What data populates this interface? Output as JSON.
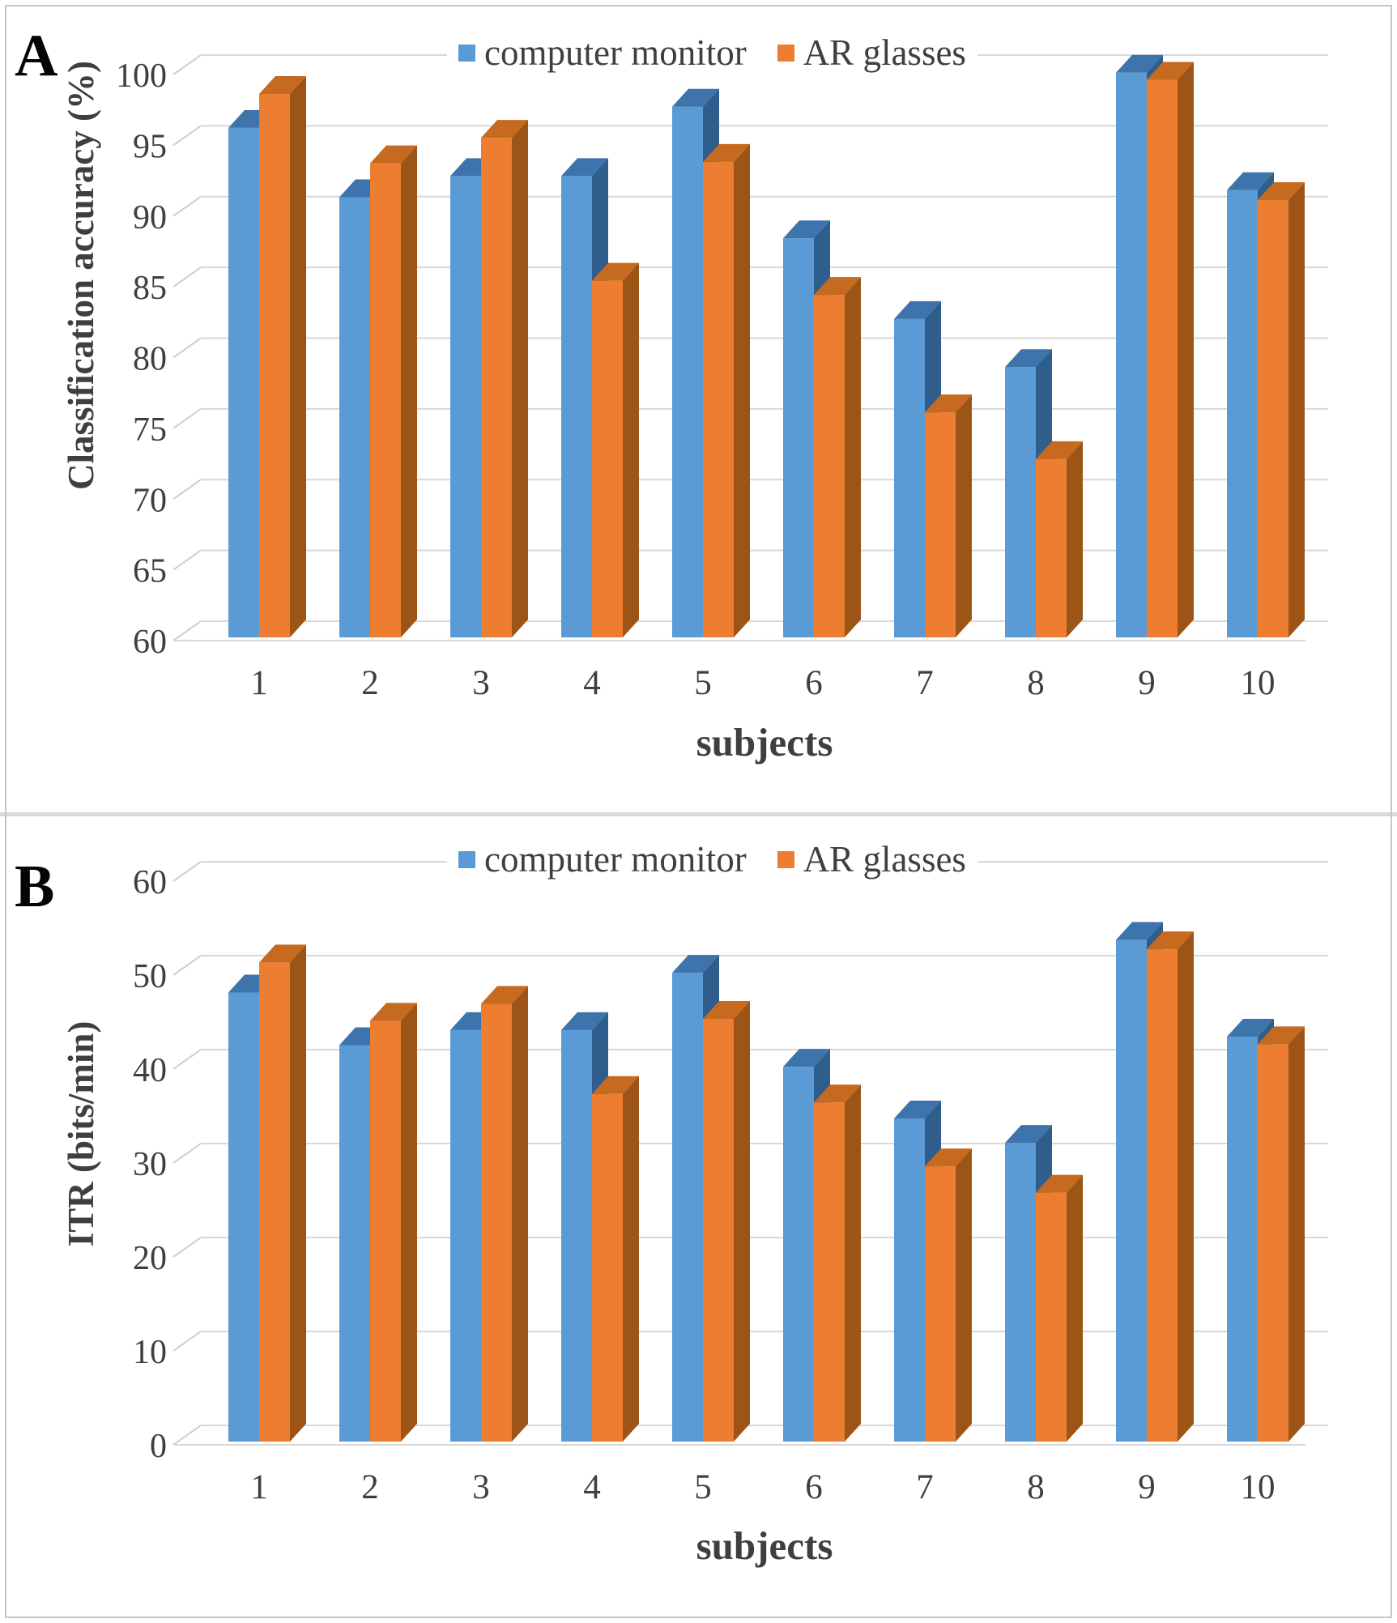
{
  "chart_data": [
    {
      "type": "bar",
      "panel_letter": "A",
      "ylabel": "Classification accuracy (%)",
      "xlabel": "subjects",
      "categories": [
        "1",
        "2",
        "3",
        "4",
        "5",
        "6",
        "7",
        "8",
        "9",
        "10"
      ],
      "series": [
        {
          "name": "computer monitor",
          "color": "#5b9bd5",
          "values": [
            96.0,
            91.1,
            92.6,
            92.6,
            97.5,
            88.2,
            82.5,
            79.1,
            99.9,
            91.6
          ]
        },
        {
          "name": "AR glasses",
          "color": "#ed7d31",
          "values": [
            98.4,
            93.5,
            95.3,
            85.2,
            93.6,
            84.2,
            75.9,
            72.6,
            99.4,
            90.9
          ]
        }
      ],
      "ylim": [
        60,
        100
      ],
      "y_ticks": [
        100,
        95,
        90,
        85,
        80,
        75,
        70,
        65,
        60
      ],
      "grid": true,
      "legend_position": "top",
      "style": "3d-column"
    },
    {
      "type": "bar",
      "panel_letter": "B",
      "ylabel": "ITR (bits/min)",
      "xlabel": "subjects",
      "categories": [
        "1",
        "2",
        "3",
        "4",
        "5",
        "6",
        "7",
        "8",
        "9",
        "10"
      ],
      "series": [
        {
          "name": "computer monitor",
          "color": "#5b9bd5",
          "values": [
            47.8,
            42.2,
            43.8,
            43.8,
            49.9,
            39.9,
            34.4,
            31.8,
            53.4,
            43.1
          ]
        },
        {
          "name": "AR glasses",
          "color": "#ed7d31",
          "values": [
            51.0,
            44.8,
            46.6,
            37.0,
            45.0,
            36.1,
            29.3,
            26.5,
            52.4,
            42.3
          ]
        }
      ],
      "ylim": [
        0,
        60
      ],
      "y_ticks": [
        60,
        50,
        40,
        30,
        20,
        10,
        0
      ],
      "grid": true,
      "legend_position": "top",
      "style": "3d-column"
    }
  ],
  "colors": {
    "monitor_front": "#5b9bd5",
    "monitor_top": "#3d74ac",
    "monitor_side": "#2f5d8c",
    "ar_front": "#ed7d31",
    "ar_top": "#c66a20",
    "ar_side": "#9c5517",
    "gridline": "#d8d8d8",
    "tick_diag": "#cfcfcf",
    "text": "#3f3f3f"
  }
}
